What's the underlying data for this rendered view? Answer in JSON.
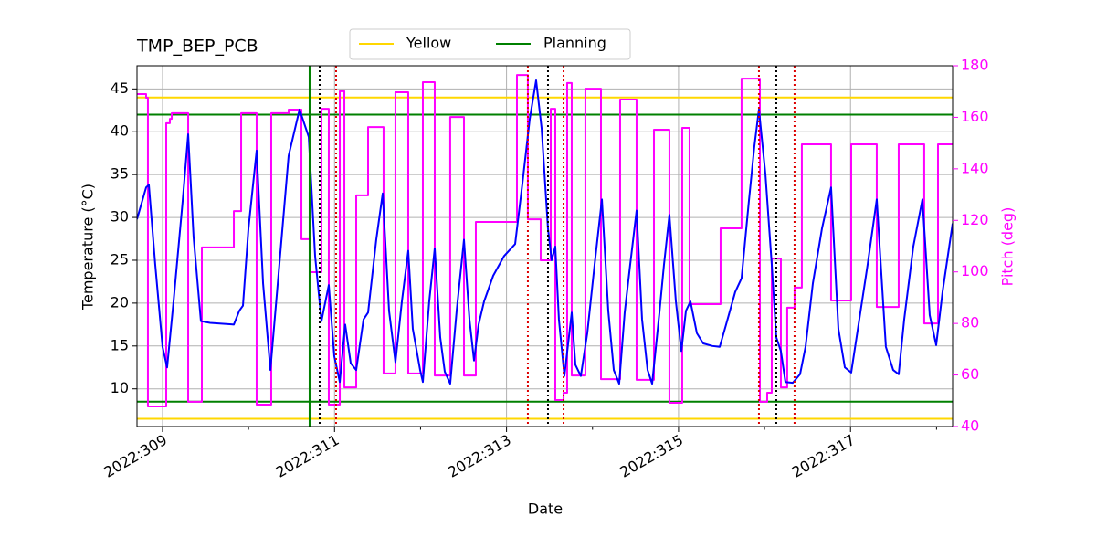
{
  "chart_data": {
    "type": "line",
    "title": "TMP_BEP_PCB",
    "x_label": "Date",
    "y_label": "Temperature (°C)",
    "y2_label": "Pitch (deg)",
    "xlim": [
      308.703,
      318.187
    ],
    "ylim": [
      5.6,
      47.7
    ],
    "y2lim": [
      40,
      180
    ],
    "xticks": [
      {
        "value": 309,
        "label": "2022:309"
      },
      {
        "value": 311,
        "label": "2022:311"
      },
      {
        "value": 313,
        "label": "2022:313"
      },
      {
        "value": 315,
        "label": "2022:315"
      },
      {
        "value": 317,
        "label": "2022:317"
      }
    ],
    "xminorticks": [
      310,
      312,
      314,
      316,
      318
    ],
    "yticks": [
      10,
      15,
      20,
      25,
      30,
      35,
      40,
      45
    ],
    "y2ticks": [
      40,
      60,
      80,
      100,
      120,
      140,
      160,
      180
    ],
    "grid": true,
    "y2color": "#ff00ff",
    "series": [
      {
        "color": "#0000ff",
        "x": [
          308.703,
          308.809,
          308.841,
          308.915,
          309.0,
          309.053,
          309.128,
          309.234,
          309.298,
          309.361,
          309.446,
          309.553,
          309.829,
          309.892,
          309.935,
          309.999,
          310.094,
          310.169,
          310.254,
          310.349,
          310.466,
          310.593,
          310.7,
          310.774,
          310.848,
          310.933,
          310.997,
          311.061,
          311.124,
          311.188,
          311.252,
          311.337,
          311.39,
          311.485,
          311.56,
          311.634,
          311.708,
          311.783,
          311.857,
          311.91,
          311.995,
          312.027,
          312.101,
          312.165,
          312.229,
          312.282,
          312.345,
          312.42,
          312.505,
          312.569,
          312.622,
          312.675,
          312.739,
          312.845,
          312.972,
          313.1,
          313.185,
          313.27,
          313.344,
          313.408,
          313.482,
          313.525,
          313.567,
          313.609,
          313.673,
          313.758,
          313.801,
          313.864,
          313.939,
          314.024,
          314.109,
          314.183,
          314.247,
          314.31,
          314.374,
          314.438,
          314.512,
          314.576,
          314.64,
          314.693,
          314.778,
          314.831,
          314.894,
          314.969,
          315.033,
          315.086,
          315.139,
          315.213,
          315.287,
          315.394,
          315.479,
          315.553,
          315.659,
          315.733,
          315.818,
          315.882,
          315.935,
          316.01,
          316.084,
          316.137,
          316.19,
          316.243,
          316.328,
          316.413,
          316.477,
          316.562,
          316.668,
          316.774,
          316.859,
          316.934,
          317.008,
          317.093,
          317.199,
          317.305,
          317.411,
          317.496,
          317.56,
          317.624,
          317.73,
          317.836,
          317.921,
          317.996,
          318.07,
          318.187
        ],
        "values": [
          29.8,
          33.5,
          33.8,
          24.5,
          14.9,
          12.5,
          20.2,
          31.9,
          39.7,
          27.7,
          17.9,
          17.7,
          17.5,
          19.1,
          19.7,
          28.7,
          37.8,
          22.3,
          12.2,
          23.4,
          37.2,
          42.6,
          39.4,
          25.5,
          17.9,
          22.1,
          13.8,
          10.8,
          17.5,
          13.0,
          12.2,
          18.1,
          18.9,
          27.4,
          32.8,
          19.1,
          13.1,
          20.2,
          26.1,
          17.0,
          12.2,
          10.8,
          20.2,
          26.4,
          16.0,
          12.0,
          10.6,
          19.1,
          27.4,
          18.1,
          13.3,
          17.5,
          20.2,
          23.2,
          25.5,
          26.9,
          34.0,
          41.5,
          46.0,
          40.4,
          28.7,
          25.0,
          26.6,
          18.1,
          11.5,
          18.9,
          12.8,
          11.5,
          16.5,
          24.5,
          32.1,
          19.1,
          12.2,
          10.6,
          18.9,
          24.5,
          30.8,
          18.1,
          12.2,
          10.6,
          18.9,
          24.5,
          30.3,
          20.2,
          14.4,
          19.1,
          20.2,
          16.5,
          15.3,
          15.0,
          14.9,
          17.5,
          21.3,
          22.9,
          31.9,
          38.3,
          42.6,
          35.1,
          24.5,
          16.0,
          14.4,
          10.8,
          10.7,
          11.7,
          14.9,
          22.3,
          28.7,
          33.5,
          17.0,
          12.5,
          11.9,
          17.5,
          24.5,
          32.1,
          14.9,
          12.2,
          11.7,
          18.1,
          26.6,
          32.1,
          18.6,
          15.1,
          21.3,
          29.3
        ]
      },
      {
        "color": "#ff00ff",
        "axis": "y2",
        "step": "post",
        "x": [
          308.703,
          308.809,
          308.83,
          309.043,
          309.085,
          309.107,
          309.298,
          309.457,
          309.829,
          309.914,
          310.094,
          310.264,
          310.466,
          310.615,
          310.721,
          310.848,
          310.933,
          311.061,
          311.114,
          311.252,
          311.39,
          311.57,
          311.708,
          311.857,
          312.027,
          312.165,
          312.345,
          312.505,
          312.643,
          313.121,
          313.248,
          313.397,
          313.514,
          313.567,
          313.663,
          313.705,
          313.758,
          313.917,
          314.098,
          314.321,
          314.512,
          314.714,
          314.894,
          315.043,
          315.128,
          315.489,
          315.733,
          315.946,
          316.031,
          316.084,
          316.19,
          316.264,
          316.349,
          316.434,
          316.774,
          317.008,
          317.305,
          317.56,
          317.857,
          318.017
        ],
        "values": [
          169.0,
          167.6,
          47.8,
          157.7,
          159.4,
          161.6,
          49.6,
          109.5,
          123.6,
          161.6,
          48.5,
          161.6,
          163.0,
          112.7,
          99.9,
          163.3,
          48.5,
          170.1,
          55.2,
          129.7,
          156.2,
          60.6,
          169.7,
          60.6,
          173.6,
          59.8,
          160.1,
          59.8,
          119.4,
          176.4,
          120.4,
          104.5,
          163.3,
          50.3,
          53.1,
          173.3,
          59.8,
          171.1,
          58.4,
          166.9,
          58.1,
          155.2,
          49.2,
          155.9,
          87.5,
          116.9,
          175.0,
          49.6,
          53.1,
          105.2,
          55.2,
          86.1,
          93.9,
          149.5,
          88.9,
          149.5,
          86.4,
          149.5,
          80.0,
          149.5
        ]
      }
    ],
    "limits": [
      {
        "name": "Yellow",
        "color": "#ffd700",
        "values": [
          44.0,
          6.5
        ]
      },
      {
        "name": "Planning",
        "color": "#008000",
        "values": [
          42.0,
          8.5
        ]
      }
    ],
    "vlines": [
      {
        "color": "#008000",
        "style": "solid",
        "x": [
          310.71
        ]
      },
      {
        "color": "#000000",
        "style": "dotted",
        "x": [
          310.827,
          313.482,
          316.137
        ]
      },
      {
        "color": "#dd0000",
        "style": "dotted",
        "x": [
          311.018,
          313.248,
          313.663,
          315.935,
          316.349
        ]
      }
    ]
  }
}
